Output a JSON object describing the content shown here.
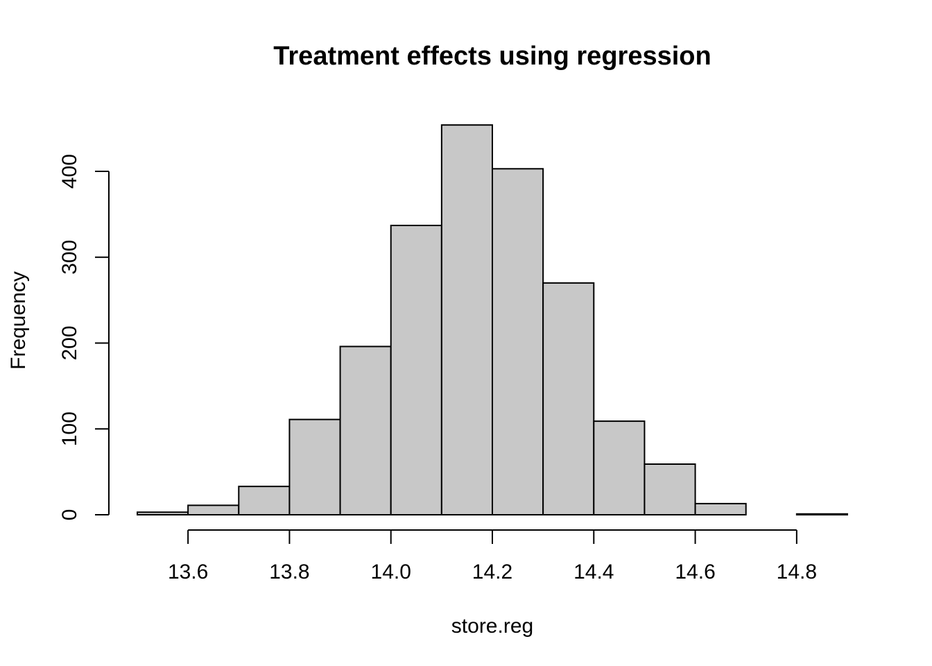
{
  "chart_data": {
    "type": "bar",
    "title": "Treatment effects using regression",
    "xlabel": "store.reg",
    "ylabel": "Frequency",
    "bin_edges": [
      13.5,
      13.6,
      13.7,
      13.8,
      13.9,
      14.0,
      14.1,
      14.2,
      14.3,
      14.4,
      14.5,
      14.6,
      14.7,
      14.8,
      14.9
    ],
    "values": [
      3,
      11,
      33,
      111,
      196,
      337,
      454,
      403,
      270,
      109,
      59,
      13,
      0,
      1
    ],
    "xlim": [
      13.5,
      14.9
    ],
    "ylim": [
      0,
      454
    ],
    "x_ticks": [
      13.6,
      13.8,
      14.0,
      14.2,
      14.4,
      14.6,
      14.8
    ],
    "x_tick_labels": [
      "13.6",
      "13.8",
      "14.0",
      "14.2",
      "14.4",
      "14.6",
      "14.8"
    ],
    "y_ticks": [
      0,
      100,
      200,
      300,
      400
    ],
    "y_tick_labels": [
      "0",
      "100",
      "200",
      "300",
      "400"
    ],
    "grid": false,
    "bar_color": "#c8c8c8",
    "edge_color": "#000000"
  }
}
